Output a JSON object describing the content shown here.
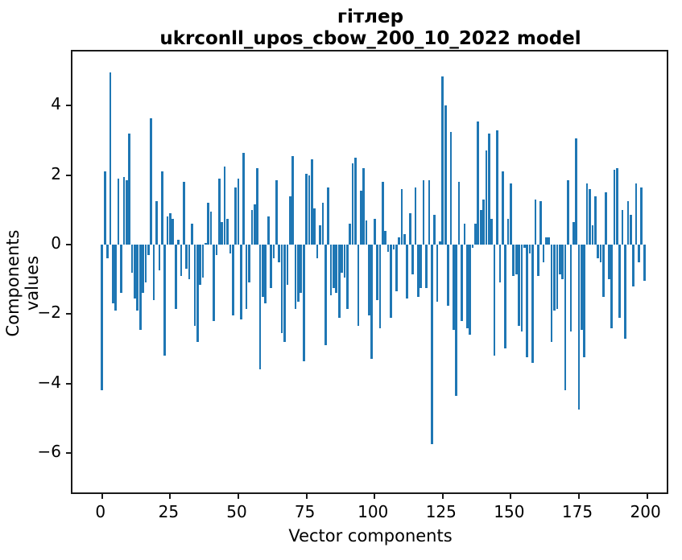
{
  "figure": {
    "title_line1": "гітлер",
    "title_line2": "ukrconll_upos_cbow_200_10_2022 model",
    "xlabel": "Vector components",
    "ylabel": "Components values"
  },
  "chart_data": {
    "type": "bar",
    "title": "гітлер\nukrconll_upos_cbow_200_10_2022 model",
    "xlabel": "Vector components",
    "ylabel": "Components values",
    "legend": null,
    "grid": false,
    "bar_color": "#1f77b4",
    "spine_color": "#1a1a1a",
    "x_description": "vector component index 0..199",
    "x_range": [
      0,
      199
    ],
    "xlim": [
      -10.9,
      208.5
    ],
    "ylim": [
      -7.2,
      5.6
    ],
    "x_tick_values": [
      0,
      25,
      50,
      75,
      100,
      125,
      150,
      175,
      200
    ],
    "x_tick_labels": [
      "0",
      "25",
      "50",
      "75",
      "100",
      "125",
      "150",
      "175",
      "200"
    ],
    "y_tick_values": [
      4,
      2,
      0,
      -2,
      -4,
      -6
    ],
    "y_tick_labels": [
      "4",
      "2",
      "0",
      "−2",
      "−4",
      "−6"
    ],
    "values": [
      -4.2,
      2.1,
      -0.4,
      4.95,
      -1.7,
      -1.9,
      1.9,
      -1.4,
      1.95,
      1.85,
      3.2,
      -0.8,
      -1.55,
      -1.9,
      -2.45,
      -1.4,
      -1.1,
      -0.3,
      3.65,
      -1.6,
      1.25,
      -0.75,
      2.1,
      -3.2,
      0.8,
      0.9,
      0.75,
      -1.85,
      0.15,
      -0.9,
      1.8,
      -0.7,
      -1.0,
      0.6,
      -2.35,
      -2.8,
      -1.15,
      -0.95,
      0.05,
      1.2,
      0.95,
      -2.2,
      -0.3,
      1.9,
      0.65,
      2.25,
      0.75,
      -0.25,
      -2.05,
      1.65,
      1.9,
      -2.15,
      2.65,
      -1.85,
      -1.1,
      1.0,
      1.15,
      2.2,
      -3.6,
      -1.5,
      -1.7,
      0.8,
      -1.25,
      -0.4,
      1.85,
      -0.5,
      -2.55,
      -2.8,
      -1.15,
      1.4,
      2.55,
      -1.85,
      -1.65,
      -1.4,
      -3.35,
      2.05,
      2.0,
      2.45,
      1.05,
      -0.4,
      0.55,
      1.2,
      -2.9,
      1.65,
      -1.45,
      -1.25,
      -1.4,
      -2.1,
      -0.8,
      -0.95,
      -1.85,
      0.6,
      2.35,
      2.5,
      -2.35,
      1.55,
      2.2,
      0.7,
      -2.05,
      -3.3,
      0.75,
      -1.6,
      -2.4,
      1.8,
      0.4,
      -0.2,
      -2.1,
      -0.15,
      -1.35,
      0.2,
      1.6,
      0.3,
      -1.55,
      0.9,
      -0.85,
      1.65,
      -1.5,
      -1.25,
      1.85,
      -1.25,
      1.85,
      -5.75,
      0.85,
      -1.65,
      0.1,
      4.85,
      4.0,
      -1.75,
      3.25,
      -2.45,
      -4.35,
      1.8,
      -2.2,
      0.6,
      -2.4,
      -2.6,
      -0.1,
      0.6,
      3.55,
      1.0,
      1.3,
      2.7,
      3.2,
      0.75,
      -3.2,
      3.3,
      -1.1,
      2.1,
      -3.0,
      0.75,
      1.75,
      -0.9,
      -0.85,
      -2.35,
      -2.5,
      -0.1,
      -3.25,
      -0.25,
      -3.4,
      1.3,
      -0.9,
      1.25,
      -0.5,
      0.2,
      0.2,
      -2.8,
      -1.9,
      -1.85,
      -0.85,
      -1.0,
      -4.2,
      1.85,
      -2.5,
      0.65,
      3.05,
      -4.75,
      -2.45,
      -3.25,
      1.75,
      1.6,
      0.55,
      1.4,
      -0.4,
      -0.5,
      -1.5,
      1.5,
      -1.0,
      -2.4,
      2.15,
      2.2,
      -2.1,
      1.0,
      -2.7,
      1.25,
      0.85,
      -1.2,
      1.75,
      -0.5,
      1.65,
      -1.05
    ]
  }
}
